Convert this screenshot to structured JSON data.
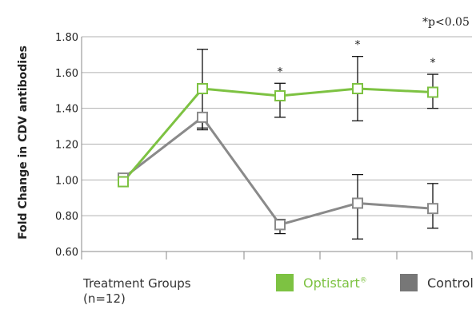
{
  "chart_data": {
    "type": "line",
    "ylabel": "Fold Change in CDV antibodies",
    "xlabel": "Treatment Groups",
    "xlabel_note": "(n=12)",
    "significance_note": "*p<0.05",
    "ylim": [
      0.6,
      1.8
    ],
    "yticks": [
      "0.60",
      "0.80",
      "1.00",
      "1.20",
      "1.40",
      "1.60",
      "1.80"
    ],
    "grid": "horizontal",
    "x": [
      1,
      2,
      3,
      4,
      5
    ],
    "xtick_labels": [
      "",
      "",
      "",
      "",
      ""
    ],
    "significance_markers": [
      "",
      "",
      "*",
      "*",
      "*"
    ],
    "series": [
      {
        "name": "Optistart®",
        "color": "#7dc242",
        "values": [
          0.99,
          1.51,
          1.47,
          1.51,
          1.49
        ],
        "error_high": [
          null,
          1.73,
          1.54,
          1.69,
          1.59
        ],
        "error_low": [
          null,
          1.29,
          1.35,
          1.33,
          1.4
        ]
      },
      {
        "name": "Control",
        "color": "#8a8a8a",
        "values": [
          1.01,
          1.35,
          0.75,
          0.87,
          0.84
        ],
        "error_high": [
          null,
          null,
          0.78,
          1.03,
          0.98
        ],
        "error_low": [
          null,
          1.28,
          0.7,
          0.67,
          0.73
        ]
      }
    ],
    "legend": [
      {
        "label": "Optistart",
        "sup": "®",
        "color": "#7dc242"
      },
      {
        "label": "Control",
        "sup": "",
        "color": "#777777"
      }
    ],
    "legend_position": "bottom-right"
  }
}
